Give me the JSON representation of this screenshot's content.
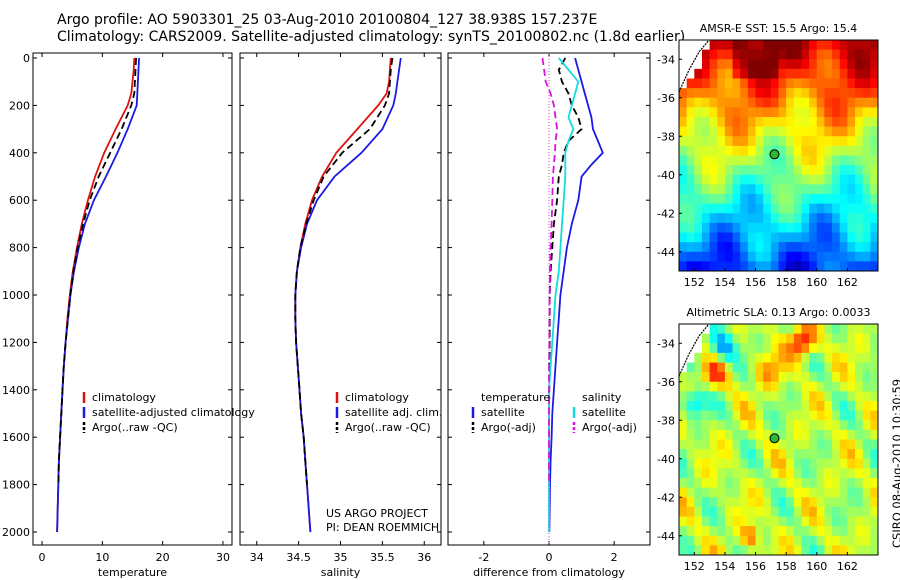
{
  "header": {
    "line1": "Argo profile: AO 5903301_25 03-Aug-2010 20100804_127 38.938S 157.237E",
    "line2": "Climatology: CARS2009. Satellite-adjusted climatology: synTS_20100802.nc (1.8d earlier)"
  },
  "stamp": "CSIRO 08-Aug-2010 10:30:59",
  "colors": {
    "climatology": "#dd1111",
    "satellite": "#1a1ae6",
    "argo": "#000000",
    "salinity_sat": "#11dddd",
    "salinity_argo": "#dd11dd"
  },
  "chart_data": [
    {
      "type": "line",
      "id": "temp",
      "xlabel": "temperature",
      "ylabel": "",
      "xlim": [
        -1.5,
        31.5
      ],
      "ylim": [
        2000,
        0
      ],
      "y_reversed": true,
      "xticks": [
        0,
        10,
        20,
        30
      ],
      "yticks": [
        0,
        200,
        400,
        600,
        800,
        1000,
        1200,
        1400,
        1600,
        1800,
        2000
      ],
      "depth": [
        0,
        50,
        100,
        150,
        200,
        300,
        400,
        500,
        600,
        700,
        800,
        900,
        1000,
        1100,
        1200,
        1300,
        1400,
        1500,
        1600,
        1700,
        1800,
        1900,
        2000
      ],
      "series": [
        {
          "name": "climatology",
          "style": "solid",
          "color_key": "climatology",
          "values": [
            15.3,
            15.2,
            15.0,
            14.8,
            14.2,
            12.2,
            10.3,
            8.8,
            7.6,
            6.6,
            5.8,
            5.1,
            4.6,
            4.2,
            3.9,
            3.6,
            3.4,
            3.2,
            3.0,
            2.8,
            2.7,
            2.6,
            2.5
          ]
        },
        {
          "name": "satellite-adjusted climatology",
          "style": "solid",
          "color_key": "satellite",
          "values": [
            16.1,
            16.0,
            15.9,
            15.8,
            15.7,
            14.2,
            12.5,
            10.6,
            8.6,
            7.1,
            6.1,
            5.3,
            4.7,
            4.3,
            3.9,
            3.6,
            3.4,
            3.2,
            3.0,
            2.8,
            2.7,
            2.6,
            2.5
          ]
        },
        {
          "name": "Argo(..raw -QC)",
          "style": "dash",
          "color_key": "argo",
          "values": [
            15.6,
            15.5,
            15.4,
            15.3,
            14.8,
            13.2,
            11.3,
            9.4,
            7.9,
            6.8,
            5.9,
            5.2,
            4.7,
            4.3,
            3.9,
            3.6,
            3.4,
            3.2,
            3.0,
            2.8,
            2.7,
            null,
            null
          ]
        }
      ],
      "legend": [
        "climatology",
        "satellite-adjusted climatology",
        "Argo(..raw -QC)"
      ]
    },
    {
      "type": "line",
      "id": "sal",
      "xlabel": "salinity",
      "ylabel": "",
      "xlim": [
        33.8,
        36.2
      ],
      "ylim": [
        2000,
        0
      ],
      "y_reversed": true,
      "xticks": [
        34,
        34.5,
        35,
        35.5,
        36
      ],
      "depth": [
        0,
        50,
        100,
        150,
        200,
        300,
        400,
        500,
        600,
        700,
        800,
        900,
        1000,
        1100,
        1200,
        1300,
        1400,
        1500,
        1600,
        1700,
        1800,
        1900,
        2000
      ],
      "series": [
        {
          "name": "climatology",
          "style": "solid",
          "color_key": "climatology",
          "values": [
            35.6,
            35.59,
            35.58,
            35.55,
            35.45,
            35.2,
            34.95,
            34.78,
            34.66,
            34.58,
            34.52,
            34.48,
            34.46,
            34.46,
            34.47,
            34.49,
            34.51,
            34.53,
            34.56,
            34.58,
            34.6,
            34.62,
            34.64
          ]
        },
        {
          "name": "satellite adj. clim.",
          "style": "solid",
          "color_key": "satellite",
          "values": [
            35.72,
            35.7,
            35.68,
            35.66,
            35.63,
            35.5,
            35.25,
            34.93,
            34.72,
            34.6,
            34.53,
            34.48,
            34.46,
            34.46,
            34.47,
            34.49,
            34.51,
            34.53,
            34.56,
            34.58,
            34.6,
            34.62,
            34.64
          ]
        },
        {
          "name": "Argo(..raw -QC)",
          "style": "dash",
          "color_key": "argo",
          "values": [
            35.62,
            35.6,
            35.59,
            35.58,
            35.53,
            35.35,
            35.02,
            34.8,
            34.68,
            34.59,
            34.52,
            34.48,
            34.46,
            34.46,
            34.47,
            34.49,
            34.51,
            34.53,
            34.56,
            34.58,
            34.6,
            null,
            null
          ]
        }
      ],
      "legend": [
        "climatology",
        "satellite adj. clim.",
        "Argo(..raw -QC)"
      ],
      "annotation": [
        "US ARGO PROJECT",
        "PI: DEAN ROEMMICH"
      ]
    },
    {
      "type": "line",
      "id": "diff",
      "xlabel": "difference from climatology",
      "ylabel": "",
      "xlim": [
        -3.1,
        3.1
      ],
      "ylim": [
        2000,
        0
      ],
      "y_reversed": true,
      "xticks": [
        -2,
        0,
        2
      ],
      "depth": [
        0,
        50,
        100,
        150,
        200,
        250,
        300,
        350,
        400,
        450,
        500,
        600,
        700,
        800,
        900,
        1000,
        1100,
        1200,
        1300,
        1400,
        1500,
        1600,
        1700,
        1800,
        1900,
        2000
      ],
      "series": [
        {
          "name": "temperature satellite",
          "style": "solid",
          "color_key": "satellite",
          "values": [
            0.8,
            0.9,
            1.0,
            1.1,
            1.2,
            1.3,
            1.35,
            1.5,
            1.65,
            1.3,
            1.0,
            0.9,
            0.7,
            0.55,
            0.45,
            0.35,
            0.3,
            0.25,
            0.2,
            0.15,
            0.1,
            0.08,
            0.05,
            0.03,
            0.02,
            0.01
          ]
        },
        {
          "name": "temperature Argo(-adj)",
          "style": "dash",
          "color_key": "argo",
          "values": [
            0.5,
            0.3,
            0.4,
            0.6,
            0.7,
            0.9,
            1.0,
            0.6,
            0.45,
            0.4,
            0.3,
            0.25,
            0.15,
            0.1,
            0.05,
            0.02,
            0.02,
            0.02,
            0.01,
            0.01,
            0.0,
            0.0,
            0.0,
            0.0,
            null,
            null
          ]
        },
        {
          "name": "salinity satellite",
          "style": "solid",
          "color_key": "salinity_sat",
          "values": [
            0.3,
            0.6,
            0.9,
            0.8,
            0.7,
            0.6,
            0.75,
            0.6,
            0.5,
            0.5,
            0.5,
            0.45,
            0.4,
            0.35,
            0.3,
            0.2,
            0.15,
            0.1,
            0.05,
            0.0,
            0.0,
            0.0,
            0.0,
            0.0,
            0.0,
            0.0
          ]
        },
        {
          "name": "salinity Argo(-adj)",
          "style": "dash",
          "color_key": "salinity_argo",
          "values": [
            -0.2,
            -0.15,
            -0.1,
            0.05,
            0.15,
            0.2,
            0.25,
            0.2,
            0.18,
            0.15,
            0.12,
            0.1,
            0.08,
            0.05,
            0.03,
            0.02,
            0.01,
            0.01,
            0.0,
            0.0,
            0.0,
            0.0,
            0.0,
            0.0,
            null,
            null
          ]
        }
      ],
      "legend_left": {
        "title": "temperature",
        "items": [
          "satellite",
          "Argo(-adj)"
        ]
      },
      "legend_right": {
        "title": "salinity",
        "items": [
          "satellite",
          "Argo(-adj)"
        ]
      }
    },
    {
      "type": "heatmap",
      "id": "sst",
      "title": "AMSR-E SST: 15.5 Argo: 15.4",
      "xlim": [
        151,
        164
      ],
      "ylim": [
        -45,
        -33
      ],
      "xticks": [
        152,
        154,
        156,
        158,
        160,
        162
      ],
      "yticks": [
        -34,
        -36,
        -38,
        -40,
        -42,
        -44
      ],
      "marker": {
        "lon": 157.237,
        "lat": -38.938
      }
    },
    {
      "type": "heatmap",
      "id": "sla",
      "title": "Altimetric SLA: 0.13 Argo: 0.0033",
      "xlim": [
        151,
        164
      ],
      "ylim": [
        -45,
        -33
      ],
      "xticks": [
        152,
        154,
        156,
        158,
        160,
        162
      ],
      "yticks": [
        -34,
        -36,
        -38,
        -40,
        -42,
        -44
      ],
      "marker": {
        "lon": 157.237,
        "lat": -38.938
      }
    }
  ]
}
